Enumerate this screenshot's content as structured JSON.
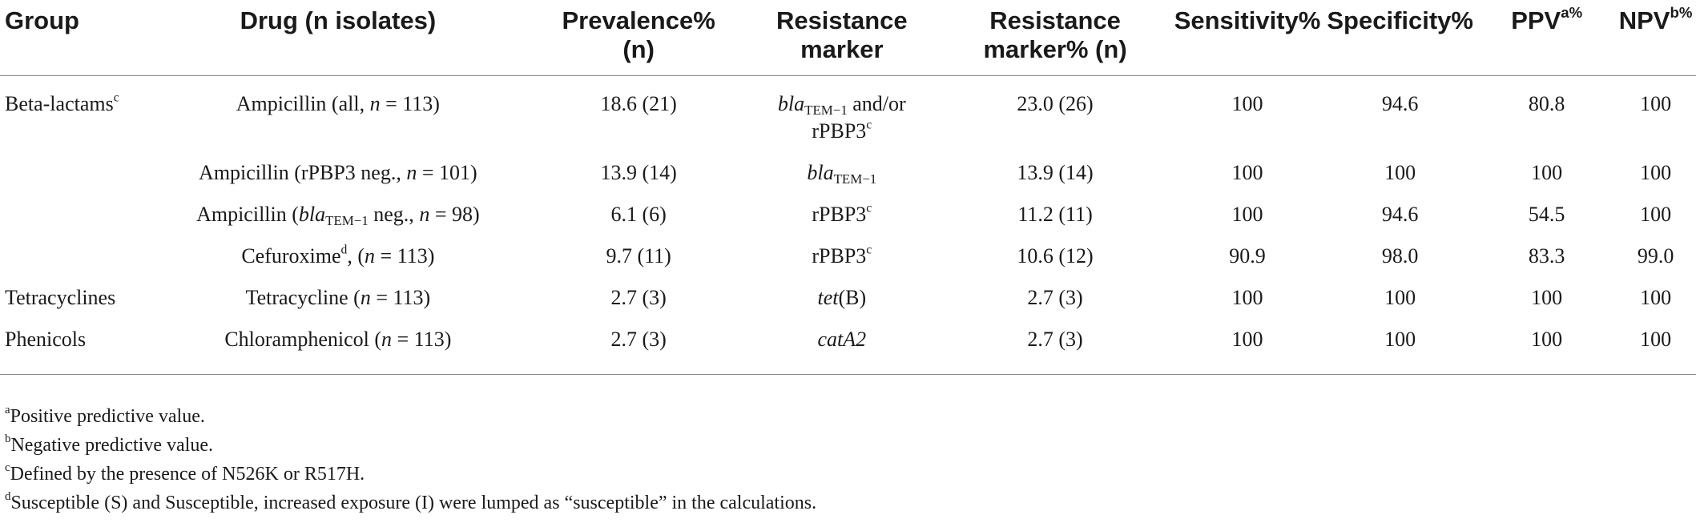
{
  "headers": {
    "group": "Group",
    "drug": "Drug (n isolates)",
    "prevalence_line1": "Prevalence%",
    "prevalence_line2": "(n)",
    "marker_line1": "Resistance",
    "marker_line2": "marker",
    "marker_pct_line1": "Resistance",
    "marker_pct_line2": "marker% (n)",
    "sensitivity": "Sensitivity%",
    "specificity": "Specificity%",
    "ppv": "PPV",
    "ppv_sup": "a%",
    "npv": "NPV",
    "npv_sup": "b%"
  },
  "rows": [
    {
      "group": "Beta-lactams",
      "group_sup": "c",
      "drug_a": "Ampicillin (all, ",
      "drug_n": "n",
      "drug_b": " = 113)",
      "prevalence": "18.6 (21)",
      "marker_a": "bla",
      "marker_sub": "TEM−1",
      "marker_b": " and/or",
      "marker_line2": "rPBP3",
      "marker_sup": "c",
      "marker_pct": "23.0 (26)",
      "sensitivity": "100",
      "specificity": "94.6",
      "ppv": "80.8",
      "npv": "100"
    },
    {
      "group": "",
      "drug_a": "Ampicillin (rPBP3 neg., ",
      "drug_n": "n",
      "drug_b": " = 101)",
      "prevalence": "13.9 (14)",
      "marker_a": "bla",
      "marker_sub": "TEM−1",
      "marker_pct": "13.9 (14)",
      "sensitivity": "100",
      "specificity": "100",
      "ppv": "100",
      "npv": "100"
    },
    {
      "group": "",
      "drug_a": "Ampicillin (",
      "drug_i": "bla",
      "drug_sub": "TEM−1",
      "drug_c": " neg., ",
      "drug_n": "n",
      "drug_b": " = 98)",
      "prevalence": "6.1 (6)",
      "marker_a": "rPBP3",
      "marker_sup": "c",
      "marker_pct": "11.2 (11)",
      "sensitivity": "100",
      "specificity": "94.6",
      "ppv": "54.5",
      "npv": "100"
    },
    {
      "group": "",
      "drug_a": "Cefuroxime",
      "drug_sup": "d",
      "drug_c": ", (",
      "drug_n": "n",
      "drug_b": " = 113)",
      "prevalence": "9.7 (11)",
      "marker_a": "rPBP3",
      "marker_sup": "c",
      "marker_pct": "10.6 (12)",
      "sensitivity": "90.9",
      "specificity": "98.0",
      "ppv": "83.3",
      "npv": "99.0"
    },
    {
      "group": "Tetracyclines",
      "drug_a": "Tetracycline (",
      "drug_n": "n",
      "drug_b": " = 113)",
      "prevalence": "2.7 (3)",
      "marker_i": "tet",
      "marker_c": "(B)",
      "marker_pct": "2.7 (3)",
      "sensitivity": "100",
      "specificity": "100",
      "ppv": "100",
      "npv": "100"
    },
    {
      "group": "Phenicols",
      "drug_a": "Chloramphenicol (",
      "drug_n": "n",
      "drug_b": " = 113)",
      "prevalence": "2.7 (3)",
      "marker_i": "catA2",
      "marker_pct": "2.7 (3)",
      "sensitivity": "100",
      "specificity": "100",
      "ppv": "100",
      "npv": "100"
    }
  ],
  "footnotes": [
    {
      "mark": "a",
      "text": "Positive predictive value."
    },
    {
      "mark": "b",
      "text": "Negative predictive value."
    },
    {
      "mark": "c",
      "text": "Defined by the presence of N526K or R517H."
    },
    {
      "mark": "d",
      "text": "Susceptible (S) and Susceptible, increased exposure (I) were lumped as “susceptible” in the calculations."
    }
  ]
}
